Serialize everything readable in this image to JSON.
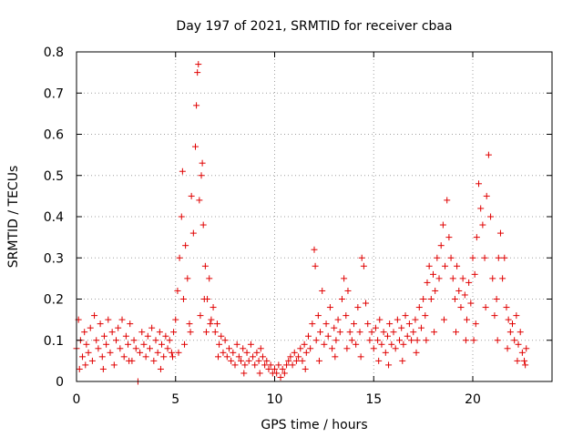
{
  "chart_data": {
    "type": "scatter",
    "title": "Day 197 of 2021, SRMTID for receiver cbaa",
    "xlabel": "GPS time / hours",
    "ylabel": "SRMTID / TECUs",
    "xlim": [
      0,
      24
    ],
    "ylim": [
      0,
      0.8
    ],
    "x_ticks": [
      "0",
      "5",
      "10",
      "15",
      "20"
    ],
    "x_tick_values": [
      0,
      5,
      10,
      15,
      20
    ],
    "y_ticks": [
      "0",
      "0.1",
      "0.2",
      "0.3",
      "0.4",
      "0.5",
      "0.6",
      "0.7",
      "0.8"
    ],
    "y_tick_values": [
      0,
      0.1,
      0.2,
      0.3,
      0.4,
      0.5,
      0.6,
      0.7,
      0.8
    ],
    "grid": true,
    "marker": "+",
    "color": "#e00000",
    "series": [
      {
        "name": "SRMTID",
        "points": [
          [
            0.0,
            0.08
          ],
          [
            0.1,
            0.15
          ],
          [
            0.15,
            0.03
          ],
          [
            0.2,
            0.1
          ],
          [
            0.3,
            0.06
          ],
          [
            0.4,
            0.12
          ],
          [
            0.5,
            0.09
          ],
          [
            0.6,
            0.07
          ],
          [
            0.7,
            0.13
          ],
          [
            0.8,
            0.05
          ],
          [
            0.9,
            0.16
          ],
          [
            1.0,
            0.1
          ],
          [
            1.1,
            0.08
          ],
          [
            1.2,
            0.14
          ],
          [
            1.3,
            0.06
          ],
          [
            1.4,
            0.11
          ],
          [
            1.5,
            0.09
          ],
          [
            1.6,
            0.15
          ],
          [
            1.7,
            0.07
          ],
          [
            1.8,
            0.12
          ],
          [
            1.9,
            0.04
          ],
          [
            2.0,
            0.1
          ],
          [
            2.1,
            0.13
          ],
          [
            2.2,
            0.08
          ],
          [
            2.3,
            0.15
          ],
          [
            2.4,
            0.06
          ],
          [
            2.5,
            0.11
          ],
          [
            2.6,
            0.09
          ],
          [
            2.7,
            0.14
          ],
          [
            2.8,
            0.05
          ],
          [
            2.9,
            0.1
          ],
          [
            3.0,
            0.08
          ],
          [
            3.1,
            0.0
          ],
          [
            3.2,
            0.07
          ],
          [
            3.3,
            0.12
          ],
          [
            3.4,
            0.09
          ],
          [
            3.5,
            0.06
          ],
          [
            3.6,
            0.11
          ],
          [
            3.7,
            0.08
          ],
          [
            3.8,
            0.13
          ],
          [
            3.9,
            0.05
          ],
          [
            4.0,
            0.1
          ],
          [
            4.1,
            0.07
          ],
          [
            4.2,
            0.12
          ],
          [
            4.3,
            0.09
          ],
          [
            4.4,
            0.06
          ],
          [
            4.5,
            0.11
          ],
          [
            4.6,
            0.08
          ],
          [
            4.7,
            0.1
          ],
          [
            4.8,
            0.07
          ],
          [
            4.9,
            0.12
          ],
          [
            5.0,
            0.15
          ],
          [
            5.1,
            0.22
          ],
          [
            5.2,
            0.3
          ],
          [
            5.3,
            0.4
          ],
          [
            5.35,
            0.51
          ],
          [
            5.4,
            0.2
          ],
          [
            5.5,
            0.33
          ],
          [
            5.6,
            0.25
          ],
          [
            5.7,
            0.14
          ],
          [
            5.8,
            0.45
          ],
          [
            5.9,
            0.36
          ],
          [
            6.0,
            0.57
          ],
          [
            6.05,
            0.67
          ],
          [
            6.1,
            0.75
          ],
          [
            6.15,
            0.77
          ],
          [
            6.2,
            0.44
          ],
          [
            6.3,
            0.5
          ],
          [
            6.35,
            0.53
          ],
          [
            6.4,
            0.38
          ],
          [
            6.5,
            0.28
          ],
          [
            6.6,
            0.2
          ],
          [
            6.7,
            0.25
          ],
          [
            6.8,
            0.15
          ],
          [
            6.9,
            0.18
          ],
          [
            7.0,
            0.12
          ],
          [
            7.1,
            0.14
          ],
          [
            7.2,
            0.09
          ],
          [
            7.3,
            0.11
          ],
          [
            7.4,
            0.07
          ],
          [
            7.5,
            0.1
          ],
          [
            7.6,
            0.06
          ],
          [
            7.7,
            0.08
          ],
          [
            7.8,
            0.05
          ],
          [
            7.9,
            0.07
          ],
          [
            8.0,
            0.04
          ],
          [
            8.1,
            0.09
          ],
          [
            8.2,
            0.06
          ],
          [
            8.3,
            0.05
          ],
          [
            8.4,
            0.08
          ],
          [
            8.5,
            0.04
          ],
          [
            8.6,
            0.07
          ],
          [
            8.7,
            0.05
          ],
          [
            8.8,
            0.09
          ],
          [
            8.9,
            0.06
          ],
          [
            9.0,
            0.04
          ],
          [
            9.1,
            0.07
          ],
          [
            9.2,
            0.05
          ],
          [
            9.3,
            0.08
          ],
          [
            9.4,
            0.06
          ],
          [
            9.5,
            0.04
          ],
          [
            9.6,
            0.05
          ],
          [
            9.7,
            0.03
          ],
          [
            9.8,
            0.04
          ],
          [
            9.9,
            0.02
          ],
          [
            10.0,
            0.03
          ],
          [
            10.1,
            0.02
          ],
          [
            10.2,
            0.04
          ],
          [
            10.3,
            0.01
          ],
          [
            10.4,
            0.03
          ],
          [
            10.5,
            0.02
          ],
          [
            10.6,
            0.04
          ],
          [
            10.7,
            0.05
          ],
          [
            10.8,
            0.06
          ],
          [
            10.9,
            0.04
          ],
          [
            11.0,
            0.07
          ],
          [
            11.1,
            0.05
          ],
          [
            11.2,
            0.06
          ],
          [
            11.3,
            0.08
          ],
          [
            11.4,
            0.05
          ],
          [
            11.5,
            0.09
          ],
          [
            11.6,
            0.07
          ],
          [
            11.7,
            0.11
          ],
          [
            11.8,
            0.08
          ],
          [
            11.9,
            0.14
          ],
          [
            12.0,
            0.32
          ],
          [
            12.05,
            0.28
          ],
          [
            12.1,
            0.1
          ],
          [
            12.2,
            0.16
          ],
          [
            12.3,
            0.12
          ],
          [
            12.4,
            0.22
          ],
          [
            12.5,
            0.09
          ],
          [
            12.6,
            0.14
          ],
          [
            12.7,
            0.11
          ],
          [
            12.8,
            0.18
          ],
          [
            12.9,
            0.08
          ],
          [
            13.0,
            0.13
          ],
          [
            13.1,
            0.1
          ],
          [
            13.2,
            0.15
          ],
          [
            13.3,
            0.12
          ],
          [
            13.4,
            0.2
          ],
          [
            13.5,
            0.25
          ],
          [
            13.6,
            0.16
          ],
          [
            13.7,
            0.22
          ],
          [
            13.8,
            0.12
          ],
          [
            13.9,
            0.1
          ],
          [
            14.0,
            0.14
          ],
          [
            14.1,
            0.09
          ],
          [
            14.2,
            0.18
          ],
          [
            14.3,
            0.12
          ],
          [
            14.4,
            0.3
          ],
          [
            14.5,
            0.28
          ],
          [
            14.6,
            0.19
          ],
          [
            14.7,
            0.14
          ],
          [
            14.8,
            0.1
          ],
          [
            14.9,
            0.12
          ],
          [
            15.0,
            0.08
          ],
          [
            15.1,
            0.13
          ],
          [
            15.2,
            0.1
          ],
          [
            15.3,
            0.15
          ],
          [
            15.4,
            0.09
          ],
          [
            15.5,
            0.12
          ],
          [
            15.6,
            0.07
          ],
          [
            15.7,
            0.11
          ],
          [
            15.8,
            0.14
          ],
          [
            15.9,
            0.09
          ],
          [
            16.0,
            0.12
          ],
          [
            16.1,
            0.08
          ],
          [
            16.2,
            0.15
          ],
          [
            16.3,
            0.1
          ],
          [
            16.4,
            0.13
          ],
          [
            16.5,
            0.09
          ],
          [
            16.6,
            0.16
          ],
          [
            16.7,
            0.11
          ],
          [
            16.8,
            0.14
          ],
          [
            16.9,
            0.1
          ],
          [
            17.0,
            0.12
          ],
          [
            17.1,
            0.15
          ],
          [
            17.2,
            0.1
          ],
          [
            17.3,
            0.18
          ],
          [
            17.4,
            0.13
          ],
          [
            17.5,
            0.2
          ],
          [
            17.6,
            0.16
          ],
          [
            17.7,
            0.24
          ],
          [
            17.8,
            0.28
          ],
          [
            17.9,
            0.2
          ],
          [
            18.0,
            0.26
          ],
          [
            18.1,
            0.22
          ],
          [
            18.2,
            0.3
          ],
          [
            18.3,
            0.25
          ],
          [
            18.4,
            0.33
          ],
          [
            18.5,
            0.38
          ],
          [
            18.6,
            0.28
          ],
          [
            18.7,
            0.44
          ],
          [
            18.8,
            0.35
          ],
          [
            18.9,
            0.3
          ],
          [
            19.0,
            0.25
          ],
          [
            19.1,
            0.2
          ],
          [
            19.2,
            0.28
          ],
          [
            19.3,
            0.22
          ],
          [
            19.4,
            0.18
          ],
          [
            19.5,
            0.25
          ],
          [
            19.6,
            0.21
          ],
          [
            19.7,
            0.15
          ],
          [
            19.8,
            0.24
          ],
          [
            19.9,
            0.19
          ],
          [
            20.0,
            0.3
          ],
          [
            20.05,
            0.1
          ],
          [
            20.1,
            0.26
          ],
          [
            20.2,
            0.35
          ],
          [
            20.3,
            0.48
          ],
          [
            20.4,
            0.42
          ],
          [
            20.5,
            0.38
          ],
          [
            20.6,
            0.3
          ],
          [
            20.7,
            0.45
          ],
          [
            20.8,
            0.55
          ],
          [
            20.9,
            0.4
          ],
          [
            21.0,
            0.25
          ],
          [
            21.1,
            0.16
          ],
          [
            21.2,
            0.2
          ],
          [
            21.3,
            0.3
          ],
          [
            21.4,
            0.36
          ],
          [
            21.5,
            0.25
          ],
          [
            21.6,
            0.3
          ],
          [
            21.7,
            0.18
          ],
          [
            21.8,
            0.15
          ],
          [
            21.9,
            0.12
          ],
          [
            22.0,
            0.14
          ],
          [
            22.1,
            0.1
          ],
          [
            22.2,
            0.16
          ],
          [
            22.3,
            0.09
          ],
          [
            22.4,
            0.12
          ],
          [
            22.5,
            0.07
          ],
          [
            22.6,
            0.05
          ],
          [
            22.7,
            0.08
          ],
          [
            0.45,
            0.04
          ],
          [
            1.35,
            0.03
          ],
          [
            2.65,
            0.05
          ],
          [
            4.25,
            0.03
          ],
          [
            4.85,
            0.06
          ],
          [
            5.15,
            0.07
          ],
          [
            5.45,
            0.09
          ],
          [
            5.75,
            0.12
          ],
          [
            6.25,
            0.16
          ],
          [
            6.45,
            0.2
          ],
          [
            6.55,
            0.12
          ],
          [
            6.75,
            0.14
          ],
          [
            7.15,
            0.06
          ],
          [
            8.45,
            0.02
          ],
          [
            9.25,
            0.02
          ],
          [
            11.55,
            0.03
          ],
          [
            12.25,
            0.05
          ],
          [
            13.05,
            0.06
          ],
          [
            13.65,
            0.08
          ],
          [
            14.35,
            0.06
          ],
          [
            15.25,
            0.05
          ],
          [
            15.75,
            0.04
          ],
          [
            16.45,
            0.05
          ],
          [
            17.15,
            0.07
          ],
          [
            17.65,
            0.1
          ],
          [
            18.05,
            0.12
          ],
          [
            18.55,
            0.15
          ],
          [
            19.15,
            0.12
          ],
          [
            19.65,
            0.1
          ],
          [
            20.15,
            0.14
          ],
          [
            20.65,
            0.18
          ],
          [
            21.25,
            0.1
          ],
          [
            21.75,
            0.08
          ],
          [
            22.25,
            0.05
          ],
          [
            22.65,
            0.04
          ]
        ]
      }
    ]
  }
}
